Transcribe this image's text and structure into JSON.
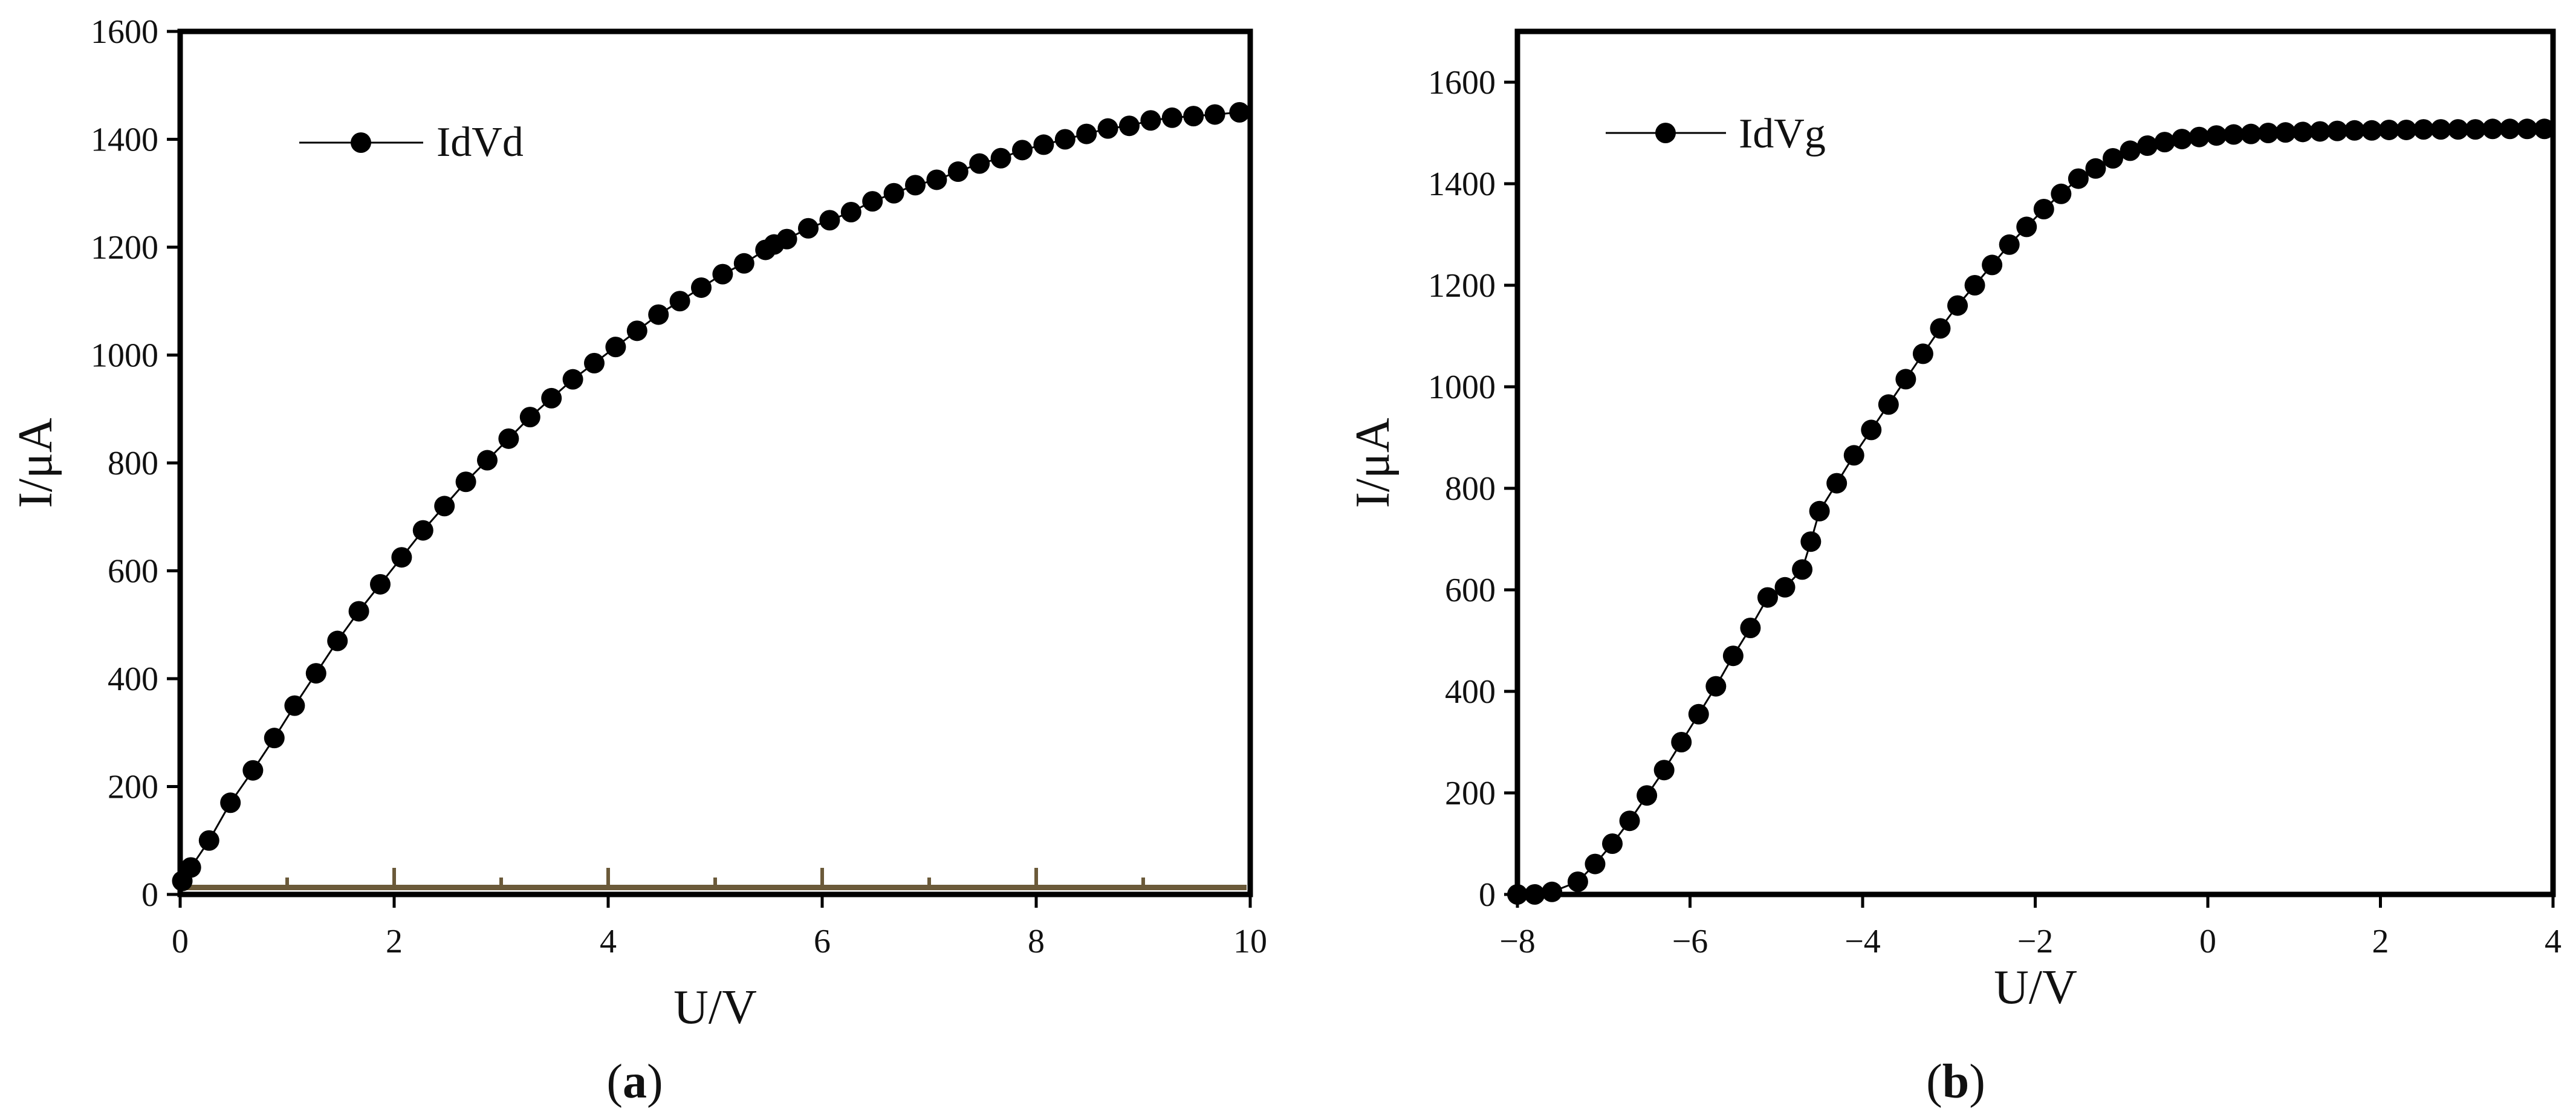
{
  "figure": {
    "panel_a_label": "a",
    "panel_b_label": "b"
  },
  "chart_data": [
    {
      "type": "line",
      "panel": "a",
      "title": "",
      "xlabel": "U/V",
      "ylabel": "I/μA",
      "xlim": [
        0,
        10
      ],
      "ylim": [
        0,
        1600
      ],
      "xticks": [
        0,
        2,
        4,
        6,
        8,
        10
      ],
      "yticks": [
        0,
        200,
        400,
        600,
        800,
        1000,
        1200,
        1400,
        1600
      ],
      "xtick_labels": [
        "0",
        "2",
        "4",
        "6",
        "8",
        "10"
      ],
      "ytick_labels": [
        "0",
        "200",
        "400",
        "600",
        "800",
        "1000",
        "1200",
        "1400",
        "1600"
      ],
      "grid": false,
      "legend_position": "top-left",
      "marker_color": "#000000",
      "line_color": "#000000",
      "series": [
        {
          "name": "IdVd",
          "x": [
            0.02,
            0.1,
            0.27,
            0.47,
            0.68,
            0.88,
            1.07,
            1.27,
            1.47,
            1.67,
            1.87,
            2.07,
            2.27,
            2.47,
            2.67,
            2.87,
            3.07,
            3.27,
            3.47,
            3.67,
            3.87,
            4.07,
            4.27,
            4.47,
            4.67,
            4.87,
            5.07,
            5.27,
            5.47,
            5.55,
            5.67,
            5.87,
            6.07,
            6.27,
            6.47,
            6.67,
            6.87,
            7.07,
            7.27,
            7.47,
            7.67,
            7.87,
            8.07,
            8.27,
            8.47,
            8.67,
            8.87,
            9.07,
            9.27,
            9.47,
            9.67,
            9.9
          ],
          "y": [
            25,
            50,
            100,
            170,
            230,
            290,
            350,
            410,
            470,
            525,
            575,
            625,
            675,
            720,
            765,
            805,
            845,
            885,
            920,
            955,
            985,
            1015,
            1045,
            1075,
            1100,
            1125,
            1150,
            1170,
            1195,
            1205,
            1215,
            1235,
            1250,
            1265,
            1285,
            1300,
            1315,
            1325,
            1340,
            1355,
            1365,
            1380,
            1390,
            1400,
            1410,
            1420,
            1425,
            1435,
            1440,
            1443,
            1446,
            1450
          ]
        }
      ]
    },
    {
      "type": "line",
      "panel": "b",
      "title": "",
      "xlabel": "U/V",
      "ylabel": "I/μA",
      "xlim": [
        -8,
        4
      ],
      "ylim": [
        0,
        1700
      ],
      "xticks": [
        -8,
        -6,
        -4,
        -2,
        0,
        2,
        4
      ],
      "yticks": [
        0,
        200,
        400,
        600,
        800,
        1000,
        1200,
        1400,
        1600
      ],
      "xtick_labels": [
        "−8",
        "−6",
        "−4",
        "−2",
        "0",
        "2",
        "4"
      ],
      "ytick_labels": [
        "0",
        "200",
        "400",
        "600",
        "800",
        "1000",
        "1200",
        "1400",
        "1600"
      ],
      "grid": false,
      "legend_position": "top-left",
      "marker_color": "#000000",
      "line_color": "#000000",
      "series": [
        {
          "name": "IdVg",
          "x": [
            -8.0,
            -7.8,
            -7.6,
            -7.3,
            -7.1,
            -6.9,
            -6.7,
            -6.5,
            -6.3,
            -6.1,
            -5.9,
            -5.7,
            -5.5,
            -5.3,
            -5.1,
            -4.9,
            -4.7,
            -4.6,
            -4.5,
            -4.3,
            -4.1,
            -3.9,
            -3.7,
            -3.5,
            -3.3,
            -3.1,
            -2.9,
            -2.7,
            -2.5,
            -2.3,
            -2.1,
            -1.9,
            -1.7,
            -1.5,
            -1.3,
            -1.1,
            -0.9,
            -0.7,
            -0.5,
            -0.3,
            -0.1,
            0.1,
            0.3,
            0.5,
            0.7,
            0.9,
            1.1,
            1.3,
            1.5,
            1.7,
            1.9,
            2.1,
            2.3,
            2.5,
            2.7,
            2.9,
            3.1,
            3.3,
            3.5,
            3.7,
            3.9
          ],
          "y": [
            0,
            0,
            5,
            25,
            60,
            100,
            145,
            195,
            245,
            300,
            355,
            410,
            470,
            525,
            585,
            605,
            640,
            695,
            755,
            810,
            865,
            915,
            965,
            1015,
            1065,
            1115,
            1160,
            1200,
            1240,
            1280,
            1315,
            1350,
            1380,
            1410,
            1430,
            1450,
            1465,
            1475,
            1482,
            1488,
            1492,
            1495,
            1497,
            1498,
            1500,
            1501,
            1502,
            1503,
            1504,
            1505,
            1505,
            1506,
            1506,
            1507,
            1507,
            1507,
            1507,
            1508,
            1508,
            1508,
            1508
          ]
        }
      ]
    }
  ]
}
